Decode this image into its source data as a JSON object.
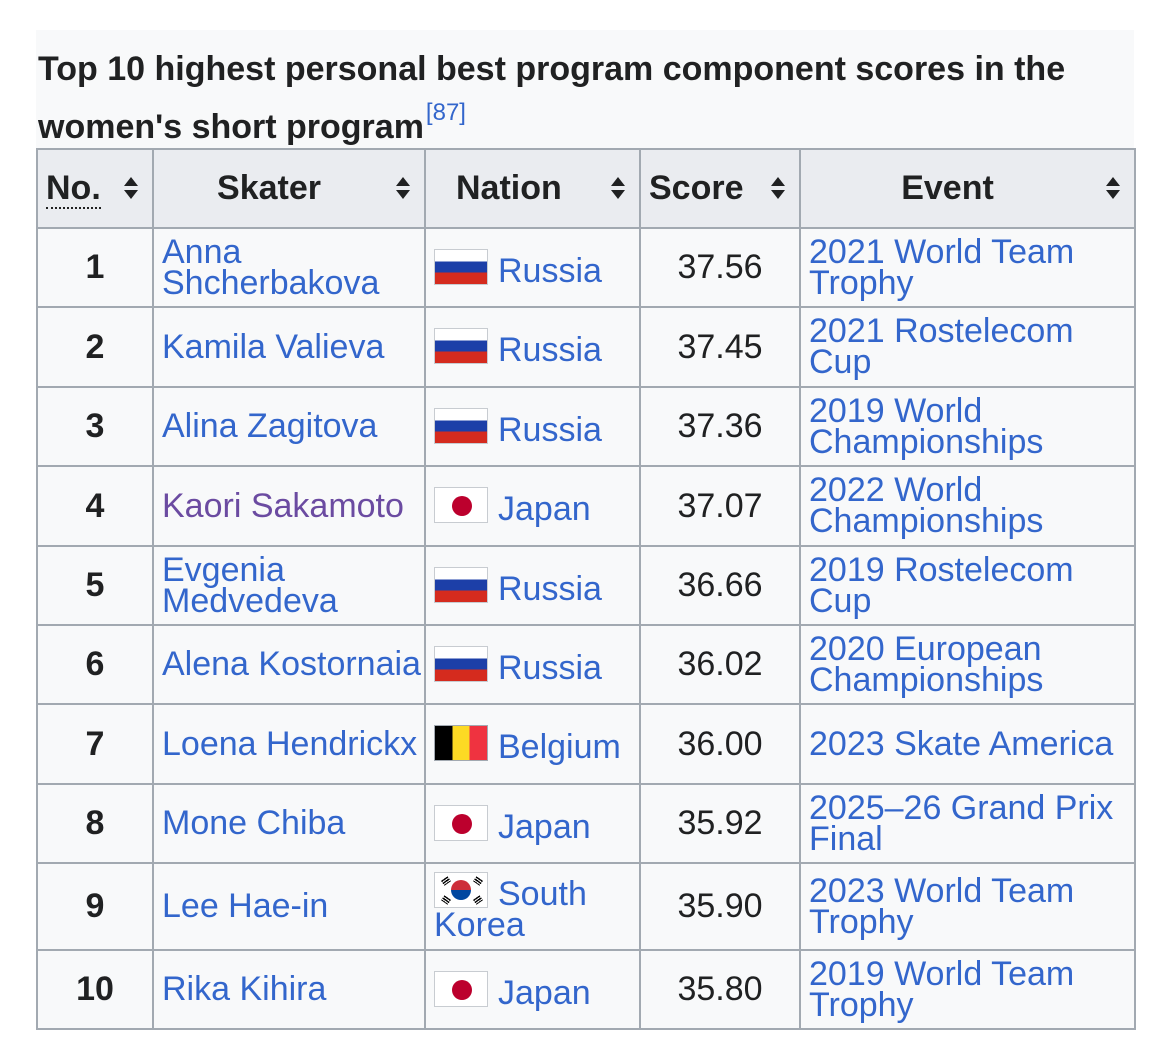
{
  "caption": {
    "title": "Top 10 highest personal best program component scores in the women's short program",
    "ref": "[87]"
  },
  "headers": {
    "no": "No.",
    "skater": "Skater",
    "nation": "Nation",
    "score": "Score",
    "event": "Event"
  },
  "rows": [
    {
      "no": "1",
      "skater": "Anna Shcherbakova",
      "nation": "Russia",
      "flag": "russia-flag-icon",
      "score": "37.56",
      "event": "2021 World Team Trophy"
    },
    {
      "no": "2",
      "skater": "Kamila Valieva",
      "nation": "Russia",
      "flag": "russia-flag-icon",
      "score": "37.45",
      "event": "2021 Rostelecom Cup"
    },
    {
      "no": "3",
      "skater": "Alina Zagitova",
      "nation": "Russia",
      "flag": "russia-flag-icon",
      "score": "37.36",
      "event": "2019 World Championships"
    },
    {
      "no": "4",
      "skater": "Kaori Sakamoto",
      "nation": "Japan",
      "flag": "japan-flag-icon",
      "score": "37.07",
      "event": "2022 World Championships"
    },
    {
      "no": "5",
      "skater": "Evgenia Medvedeva",
      "nation": "Russia",
      "flag": "russia-flag-icon",
      "score": "36.66",
      "event": "2019 Rostelecom Cup"
    },
    {
      "no": "6",
      "skater": "Alena Kostornaia",
      "nation": "Russia",
      "flag": "russia-flag-icon",
      "score": "36.02",
      "event": "2020 European Championships"
    },
    {
      "no": "7",
      "skater": "Loena Hendrickx",
      "nation": "Belgium",
      "flag": "belgium-flag-icon",
      "score": "36.00",
      "event": "2023 Skate America"
    },
    {
      "no": "8",
      "skater": "Mone Chiba",
      "nation": "Japan",
      "flag": "japan-flag-icon",
      "score": "35.92",
      "event": "2025–26 Grand Prix Final"
    },
    {
      "no": "9",
      "skater": "Lee Hae-in",
      "nation": "South Korea",
      "flag": "south-korea-flag-icon",
      "score": "35.90",
      "event": "2023 World Team Trophy"
    },
    {
      "no": "10",
      "skater": "Rika Kihira",
      "nation": "Japan",
      "flag": "japan-flag-icon",
      "score": "35.80",
      "event": "2019 World Team Trophy"
    }
  ],
  "colors": {
    "link": "#3366cc",
    "visited_link": "#6b4ba1",
    "header_bg": "#eaecf0",
    "cell_bg": "#f8f9fa",
    "border": "#a2a9b1"
  }
}
